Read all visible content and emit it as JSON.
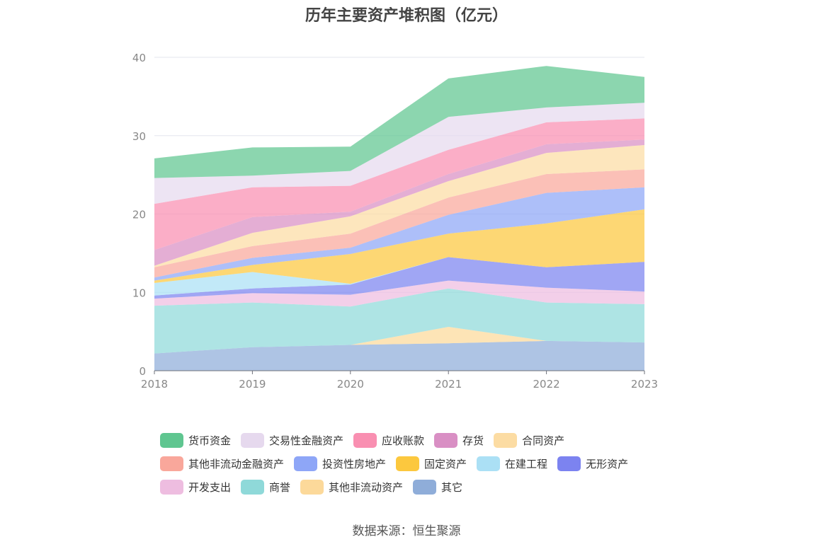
{
  "chart_data": {
    "type": "area",
    "stacked": true,
    "title": "历年主要资产堆积图（亿元）",
    "x": [
      "2018",
      "2019",
      "2020",
      "2021",
      "2022",
      "2023"
    ],
    "ylim": [
      0,
      40
    ],
    "yticks": [
      "0",
      "10",
      "20",
      "30",
      "40"
    ],
    "grid": true,
    "legend_position": "bottom",
    "series": [
      {
        "name": "其它",
        "color": "#8fadd9",
        "values": [
          2.2,
          3.0,
          3.3,
          3.5,
          3.8,
          3.6
        ]
      },
      {
        "name": "其他非流动资产",
        "color": "#fcd99a",
        "values": [
          0,
          0,
          0,
          2.1,
          0,
          0
        ]
      },
      {
        "name": "商誉",
        "color": "#8fd9d9",
        "values": [
          6.1,
          5.7,
          4.9,
          4.9,
          4.9,
          4.9
        ]
      },
      {
        "name": "开发支出",
        "color": "#eebde0",
        "values": [
          0.9,
          1.2,
          1.5,
          1.0,
          1.9,
          1.6
        ]
      },
      {
        "name": "无形资产",
        "color": "#7c83f0",
        "values": [
          0.4,
          0.6,
          1.3,
          3.0,
          2.6,
          3.8
        ]
      },
      {
        "name": "在建工程",
        "color": "#abe0f5",
        "values": [
          1.6,
          2.1,
          0.1,
          0,
          0,
          0
        ]
      },
      {
        "name": "固定资产",
        "color": "#fcc83e",
        "values": [
          0.3,
          0.9,
          3.8,
          3.0,
          5.6,
          6.7
        ]
      },
      {
        "name": "投资性房地产",
        "color": "#8ea6f7",
        "values": [
          0.4,
          0.9,
          0.8,
          2.4,
          3.9,
          2.8
        ]
      },
      {
        "name": "其他非流动金融资产",
        "color": "#f9a79b",
        "values": [
          1.3,
          1.5,
          1.8,
          2.2,
          2.4,
          2.3
        ]
      },
      {
        "name": "合同资产",
        "color": "#fcdca3",
        "values": [
          0.2,
          1.7,
          2.2,
          2.1,
          2.7,
          3.1
        ]
      },
      {
        "name": "存货",
        "color": "#d98fc4",
        "values": [
          2.0,
          2.0,
          0.6,
          0.9,
          1.1,
          0.7
        ]
      },
      {
        "name": "应收账款",
        "color": "#f98fb1",
        "values": [
          5.9,
          3.8,
          3.3,
          3.1,
          2.8,
          2.7
        ]
      },
      {
        "name": "交易性金融资产",
        "color": "#e6d9ee",
        "values": [
          3.3,
          1.5,
          1.9,
          4.2,
          1.9,
          2.0
        ]
      },
      {
        "name": "货币资金",
        "color": "#5fc690",
        "values": [
          2.5,
          3.6,
          3.1,
          4.9,
          5.3,
          3.3
        ]
      }
    ]
  },
  "legend_rows": [
    [
      {
        "label": "货币资金",
        "color": "#5fc690"
      },
      {
        "label": "交易性金融资产",
        "color": "#e6d9ee"
      },
      {
        "label": "应收账款",
        "color": "#f98fb1"
      },
      {
        "label": "存货",
        "color": "#d98fc4"
      },
      {
        "label": "合同资产",
        "color": "#fcdca3"
      }
    ],
    [
      {
        "label": "其他非流动金融资产",
        "color": "#f9a79b"
      },
      {
        "label": "投资性房地产",
        "color": "#8ea6f7"
      },
      {
        "label": "固定资产",
        "color": "#fcc83e"
      },
      {
        "label": "在建工程",
        "color": "#abe0f5"
      },
      {
        "label": "无形资产",
        "color": "#7c83f0"
      }
    ],
    [
      {
        "label": "开发支出",
        "color": "#eebde0"
      },
      {
        "label": "商誉",
        "color": "#8fd9d9"
      },
      {
        "label": "其他非流动资产",
        "color": "#fcd99a"
      },
      {
        "label": "其它",
        "color": "#8fadd9"
      }
    ]
  ],
  "source": "数据来源：恒生聚源"
}
